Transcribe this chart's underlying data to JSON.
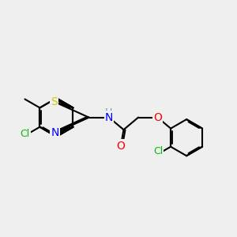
{
  "background_color": "#efefef",
  "bond_color": "#000000",
  "bond_width": 1.5,
  "atom_colors": {
    "S": "#cccc00",
    "N": "#0000ff",
    "O": "#ff0000",
    "Cl": "#00bb00",
    "H": "#5f9ea0",
    "C": "#000000"
  },
  "font_size_large": 10,
  "font_size_small": 9,
  "figsize": [
    3.0,
    3.0
  ],
  "dpi": 100
}
